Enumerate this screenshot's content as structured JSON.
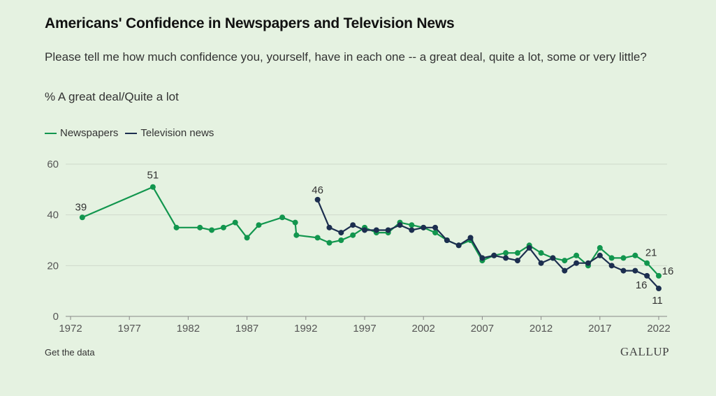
{
  "title": "Americans' Confidence in Newspapers and Television News",
  "subtitle": "Please tell me how much confidence you, yourself, have in each one -- a great deal, quite a lot, some or very little?",
  "measure_label": "% A great deal/Quite a lot",
  "footer": {
    "data_link": "Get the data",
    "brand": "GALLUP"
  },
  "colors": {
    "newspapers": "#12964e",
    "television": "#1c2e4f",
    "grid": "#cfd9cb",
    "axis": "#888888"
  },
  "chart_data": {
    "type": "line",
    "ylim": [
      0,
      60
    ],
    "yticks": [
      0,
      20,
      40,
      60
    ],
    "xlim": [
      1972,
      2022
    ],
    "xticks": [
      1972,
      1977,
      1982,
      1987,
      1992,
      1997,
      2002,
      2007,
      2012,
      2017,
      2022
    ],
    "grid": true,
    "legend": "top-left",
    "series": [
      {
        "name": "Newspapers",
        "points": [
          [
            1973,
            39
          ],
          [
            1979,
            51
          ],
          [
            1981,
            35
          ],
          [
            1983,
            35
          ],
          [
            1984,
            34
          ],
          [
            1985,
            35
          ],
          [
            1986,
            37
          ],
          [
            1987,
            31
          ],
          [
            1988,
            36
          ],
          [
            1990,
            39
          ],
          [
            1991.1,
            37
          ],
          [
            1991.2,
            32
          ],
          [
            1993,
            31
          ],
          [
            1994,
            29
          ],
          [
            1995,
            30
          ],
          [
            1996,
            32
          ],
          [
            1997,
            35
          ],
          [
            1998,
            33
          ],
          [
            1999,
            33
          ],
          [
            2000,
            37
          ],
          [
            2001,
            36
          ],
          [
            2002,
            35
          ],
          [
            2003,
            33
          ],
          [
            2004,
            30
          ],
          [
            2005,
            28
          ],
          [
            2006,
            30
          ],
          [
            2007,
            22
          ],
          [
            2008,
            24
          ],
          [
            2009,
            25
          ],
          [
            2010,
            25
          ],
          [
            2011,
            28
          ],
          [
            2012,
            25
          ],
          [
            2013,
            23
          ],
          [
            2014,
            22
          ],
          [
            2015,
            24
          ],
          [
            2016,
            20
          ],
          [
            2017,
            27
          ],
          [
            2018,
            23
          ],
          [
            2019,
            23
          ],
          [
            2020,
            24
          ],
          [
            2021,
            21
          ],
          [
            2022,
            16
          ]
        ],
        "labels": [
          {
            "x": 1973,
            "y": 39,
            "text": "39"
          },
          {
            "x": 1979,
            "y": 51,
            "text": "51"
          },
          {
            "x": 2021,
            "y": 21,
            "text": "21"
          },
          {
            "x": 2022,
            "y": 16,
            "text": "16"
          }
        ]
      },
      {
        "name": "Television news",
        "points": [
          [
            1993,
            46
          ],
          [
            1994,
            35
          ],
          [
            1995,
            33
          ],
          [
            1996,
            36
          ],
          [
            1997,
            34
          ],
          [
            1998,
            34
          ],
          [
            1999,
            34
          ],
          [
            2000,
            36
          ],
          [
            2001,
            34
          ],
          [
            2002,
            35
          ],
          [
            2003,
            35
          ],
          [
            2004,
            30
          ],
          [
            2005,
            28
          ],
          [
            2006,
            31
          ],
          [
            2007,
            23
          ],
          [
            2008,
            24
          ],
          [
            2009,
            23
          ],
          [
            2010,
            22
          ],
          [
            2011,
            27
          ],
          [
            2012,
            21
          ],
          [
            2013,
            23
          ],
          [
            2014,
            18
          ],
          [
            2015,
            21
          ],
          [
            2016,
            21
          ],
          [
            2017,
            24
          ],
          [
            2018,
            20
          ],
          [
            2019,
            18
          ],
          [
            2020,
            18
          ],
          [
            2021,
            16
          ],
          [
            2022,
            11
          ]
        ],
        "labels": [
          {
            "x": 1993,
            "y": 46,
            "text": "46"
          },
          {
            "x": 2021,
            "y": 16,
            "text": "16"
          },
          {
            "x": 2022,
            "y": 11,
            "text": "11"
          }
        ]
      }
    ]
  }
}
